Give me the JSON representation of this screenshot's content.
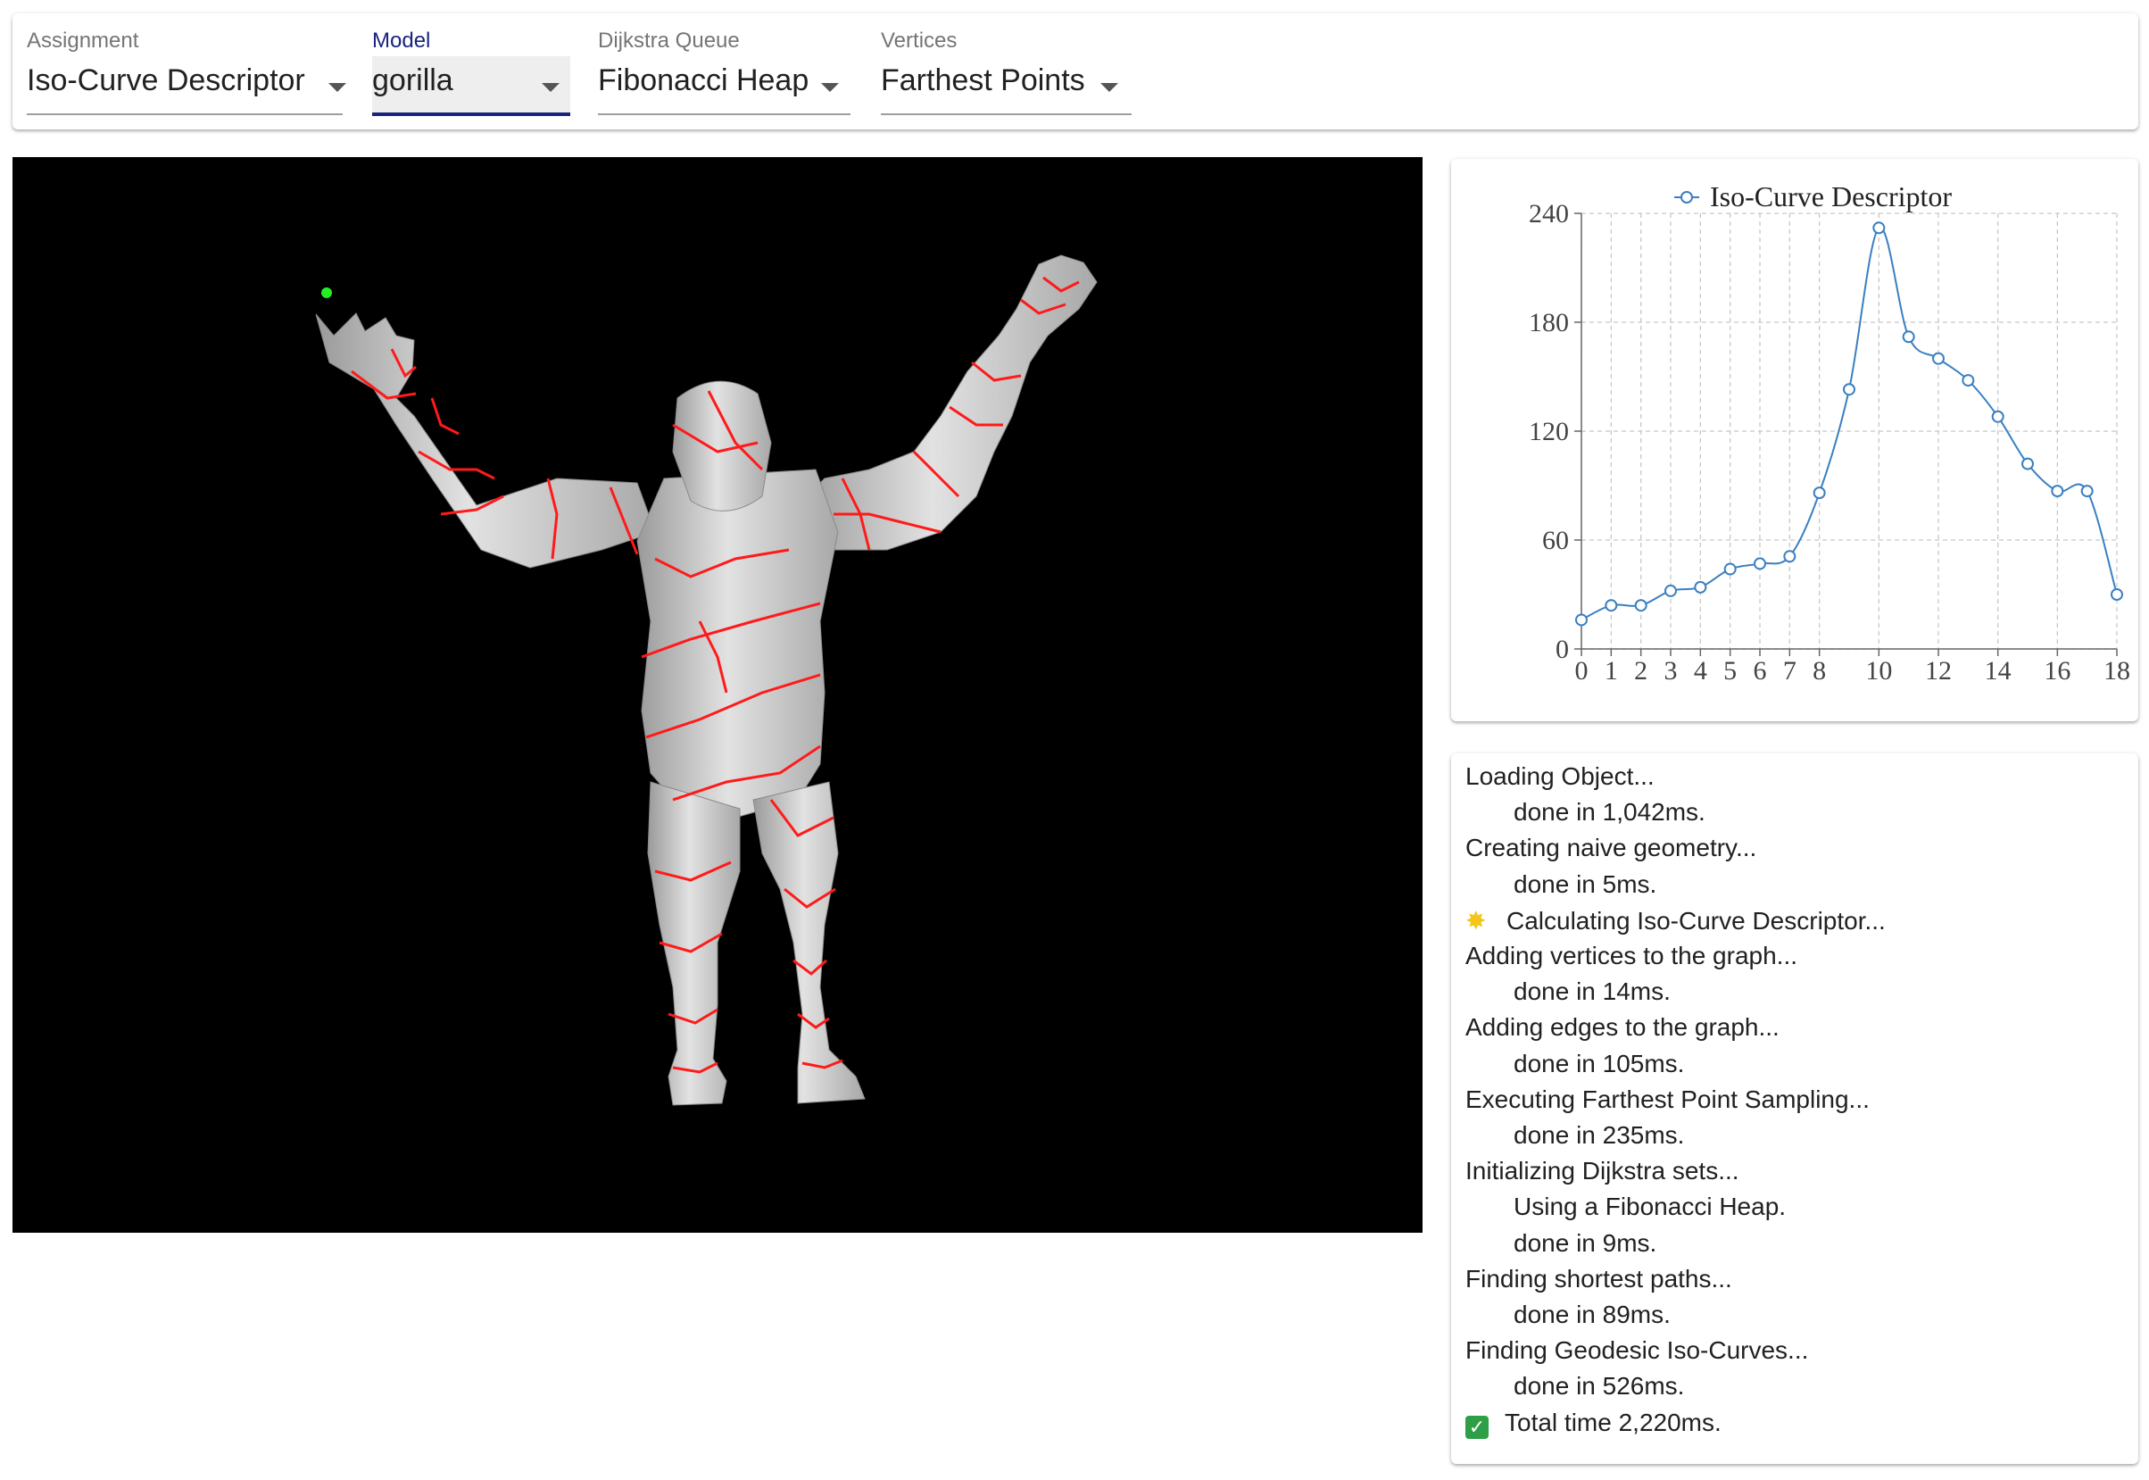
{
  "toolbar": {
    "assignment": {
      "label": "Assignment",
      "value": "Iso-Curve Descriptor"
    },
    "model": {
      "label": "Model",
      "value": "gorilla"
    },
    "queue": {
      "label": "Dijkstra Queue",
      "value": "Fibonacci Heap"
    },
    "vertices": {
      "label": "Vertices",
      "value": "Farthest Points"
    }
  },
  "colors": {
    "accent": "#1a237e",
    "series": "#3a7fc1",
    "isocurve": "#ff1a1a",
    "mesh": "#c9c9c9",
    "marker": "#22ee22"
  },
  "log": [
    {
      "text": "Loading Object...",
      "indent": false
    },
    {
      "text": "done in 1,042ms.",
      "indent": true
    },
    {
      "text": "Creating naive geometry...",
      "indent": false
    },
    {
      "text": "done in 5ms.",
      "indent": true
    },
    {
      "text": "Calculating Iso-Curve Descriptor...",
      "indent": false,
      "icon": "sparkle-icon"
    },
    {
      "text": "Adding vertices to the graph...",
      "indent": false
    },
    {
      "text": "done in 14ms.",
      "indent": true
    },
    {
      "text": "Adding edges to the graph...",
      "indent": false
    },
    {
      "text": "done in 105ms.",
      "indent": true
    },
    {
      "text": "Executing Farthest Point Sampling...",
      "indent": false
    },
    {
      "text": "done in 235ms.",
      "indent": true
    },
    {
      "text": "Initializing Dijkstra sets...",
      "indent": false
    },
    {
      "text": "Using a Fibonacci Heap.",
      "indent": true
    },
    {
      "text": "done in 9ms.",
      "indent": true
    },
    {
      "text": "Finding shortest paths...",
      "indent": false
    },
    {
      "text": "done in 89ms.",
      "indent": true
    },
    {
      "text": "Finding Geodesic Iso-Curves...",
      "indent": false
    },
    {
      "text": "done in 526ms.",
      "indent": true
    },
    {
      "text": "Total time 2,220ms.",
      "indent": false,
      "icon": "check-icon"
    }
  ],
  "chart_data": {
    "type": "line",
    "series": [
      {
        "name": "Iso-Curve Descriptor",
        "x": [
          0,
          1,
          2,
          3,
          4,
          5,
          6,
          7,
          8,
          9,
          10,
          11,
          12,
          13,
          14,
          15,
          16,
          17,
          18
        ],
        "values": [
          16,
          24,
          24,
          32,
          34,
          44,
          47,
          51,
          86,
          143,
          232,
          172,
          160,
          148,
          128,
          102,
          87,
          87,
          30
        ]
      }
    ],
    "xticks": [
      0,
      1,
      2,
      3,
      4,
      5,
      6,
      7,
      8,
      10,
      12,
      14,
      16,
      18
    ],
    "yticks": [
      0,
      60,
      120,
      180,
      240
    ],
    "xlim": [
      0,
      18
    ],
    "ylim": [
      0,
      240
    ],
    "grid": true,
    "legend": "top"
  }
}
